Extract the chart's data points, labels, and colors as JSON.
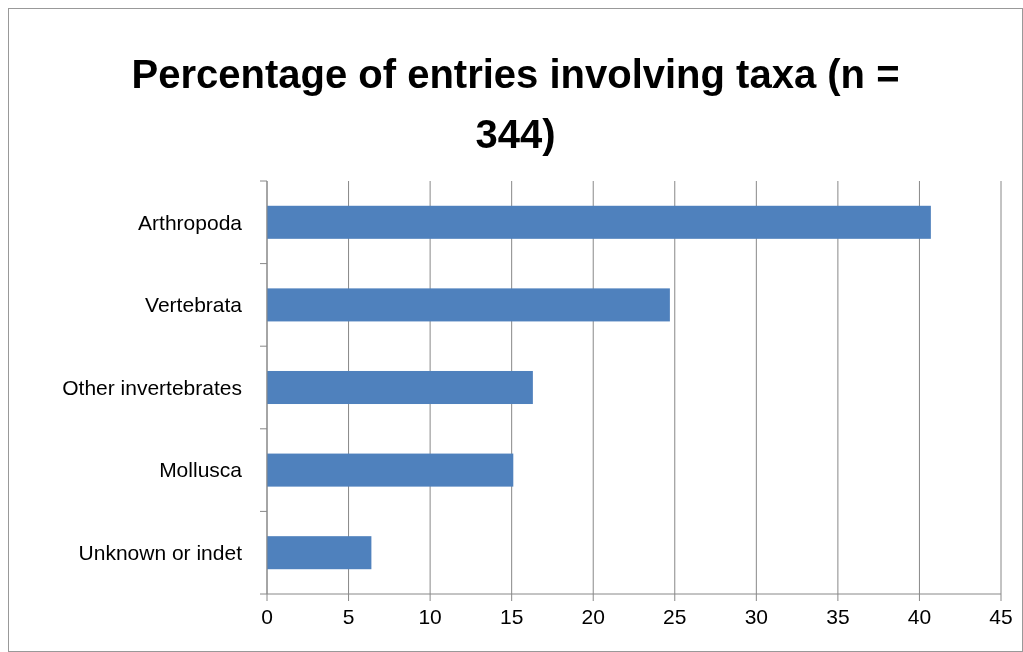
{
  "chart_data": {
    "type": "bar",
    "orientation": "horizontal",
    "title": "Percentage of entries involving taxa (n = 344)",
    "categories": [
      "Arthropoda",
      "Vertebrata",
      "Other invertebrates",
      "Mollusca",
      "Unknown or indet"
    ],
    "values": [
      40.7,
      24.7,
      16.3,
      15.1,
      6.4
    ],
    "color": "#4f81bd",
    "xlim": [
      0,
      45
    ],
    "xticks": [
      0,
      5,
      10,
      15,
      20,
      25,
      30,
      35,
      40,
      45
    ],
    "grid": "x"
  }
}
